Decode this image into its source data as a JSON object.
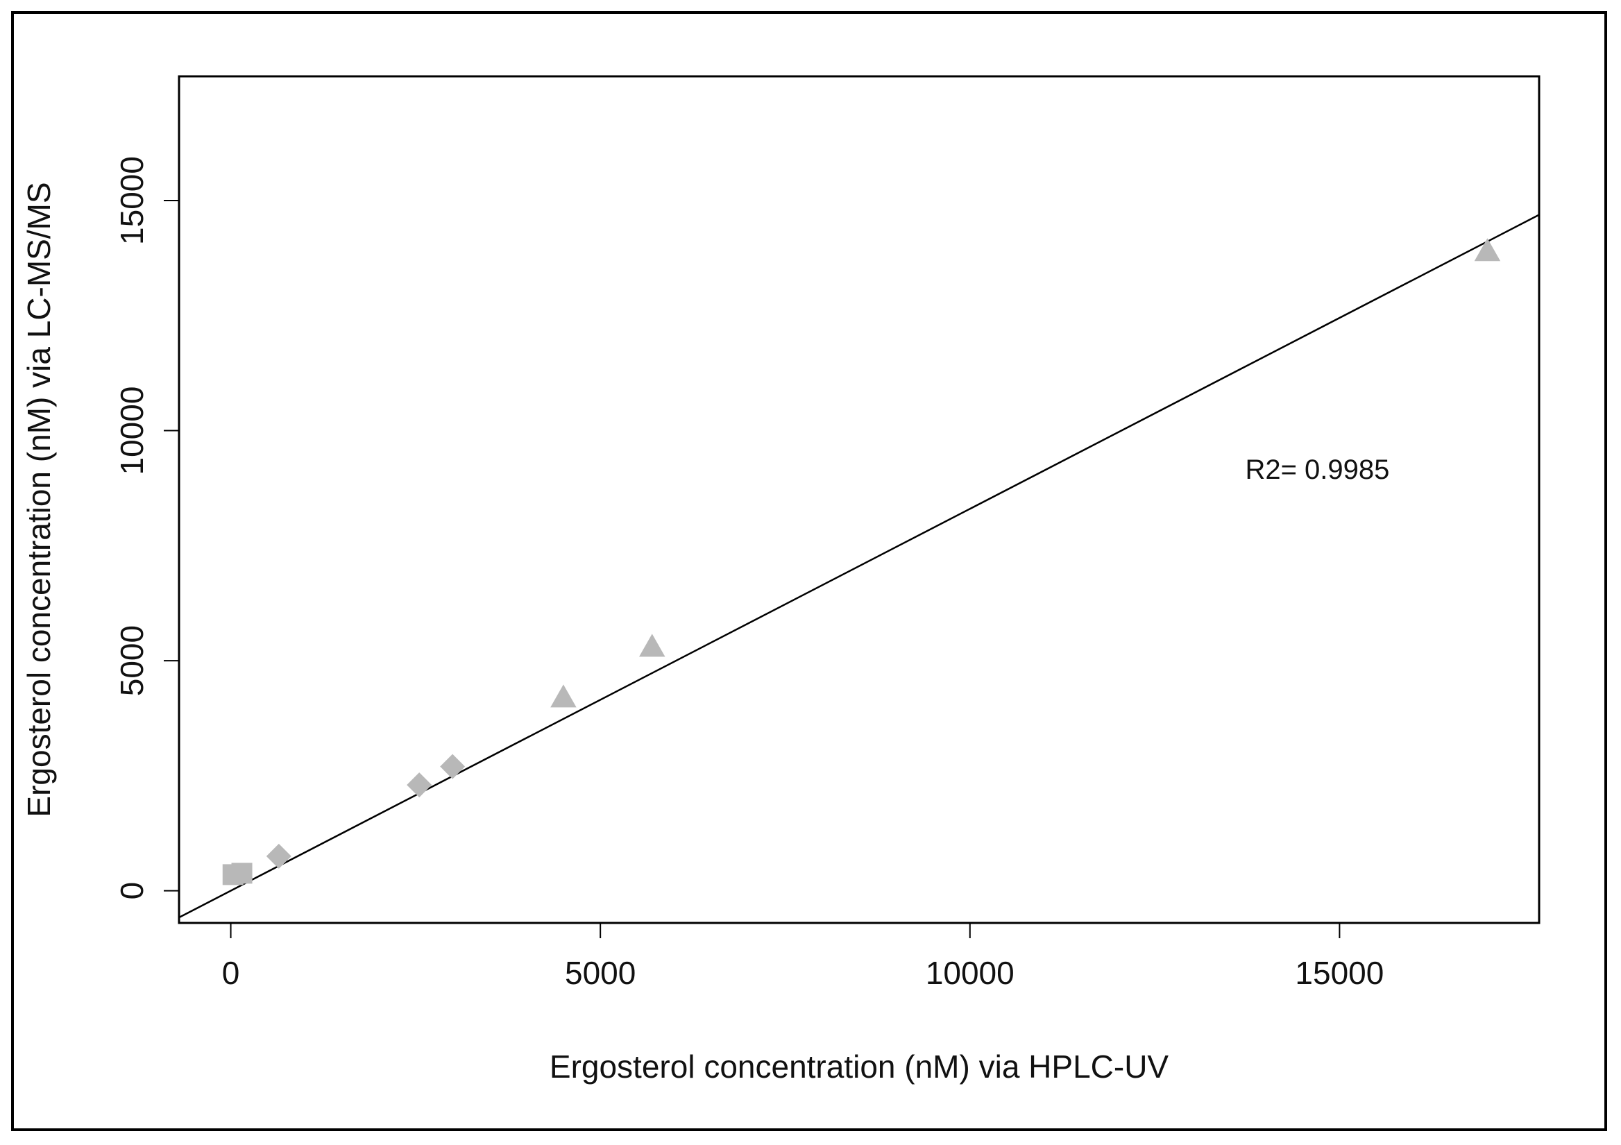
{
  "chart_data": {
    "type": "scatter",
    "title": "",
    "xlabel": "Ergosterol concentration (nM) via HPLC-UV",
    "ylabel": "Ergosterol concentration (nM) via LC-MS/MS",
    "xlim": [
      -700,
      17700
    ],
    "ylim": [
      -700,
      17700
    ],
    "xticks": [
      0,
      5000,
      10000,
      15000
    ],
    "yticks": [
      0,
      5000,
      10000,
      15000
    ],
    "xtick_labels": [
      "0",
      "5000",
      "10000",
      "15000"
    ],
    "ytick_labels": [
      "0",
      "5000",
      "10000",
      "15000"
    ],
    "grid": false,
    "legend": "none",
    "marker_color": "#b8b8b8",
    "line_color": "#000000",
    "series": [
      {
        "marker": "square",
        "points": [
          [
            30,
            350
          ],
          [
            150,
            380
          ]
        ]
      },
      {
        "marker": "diamond",
        "points": [
          [
            650,
            750
          ],
          [
            2550,
            2300
          ],
          [
            3000,
            2700
          ]
        ]
      },
      {
        "marker": "triangle",
        "points": [
          [
            4500,
            4200
          ],
          [
            5700,
            5300
          ],
          [
            17000,
            13900
          ]
        ]
      }
    ],
    "fit_line": {
      "slope": 0.83,
      "intercept": 0,
      "x_range": [
        -700,
        17700
      ]
    },
    "annotations": [
      {
        "text": "R2= 0.9985",
        "x": 14700,
        "y": 8950
      }
    ]
  }
}
